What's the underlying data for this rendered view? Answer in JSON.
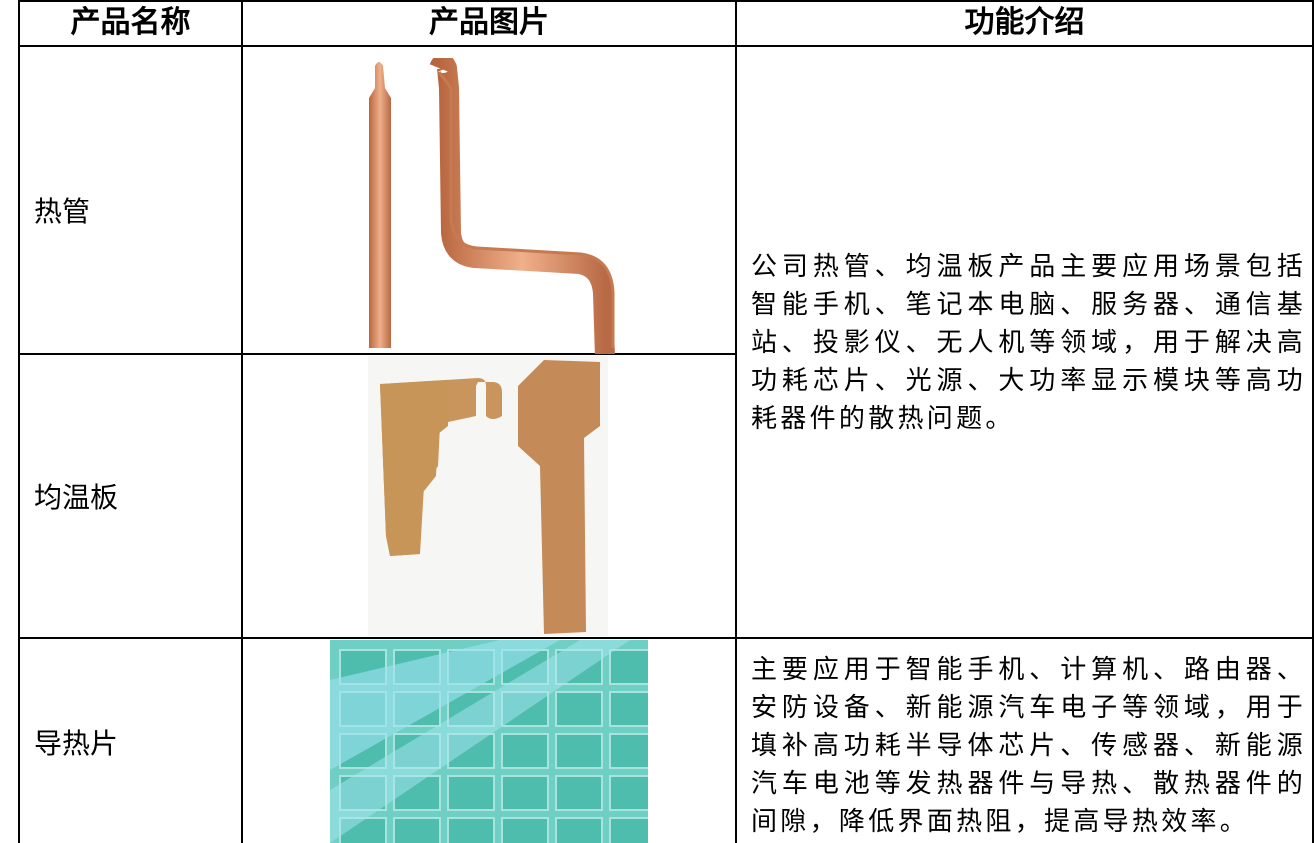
{
  "table": {
    "headers": [
      "产品名称",
      "产品图片",
      "功能介绍"
    ],
    "rows": [
      [
        "热管",
        "公司热管、均温板产品主要应用场景包括智能手机、笔记本电脑、服务器、通信基站、投影仪、无人机等领域，用于解决高功耗芯片、光源、大功率显示模块等高功耗器件的散热问题。"
      ],
      [
        "均温板"
      ],
      [
        "导热片",
        "主要应用于智能手机、计算机、路由器、安防设备、新能源汽车电子等领域，用于填补高功耗半导体芯片、传感器、新能源汽车电池等发热器件与导热、散热器件的间隙，降低界面热阻，提高导热效率。"
      ]
    ]
  }
}
